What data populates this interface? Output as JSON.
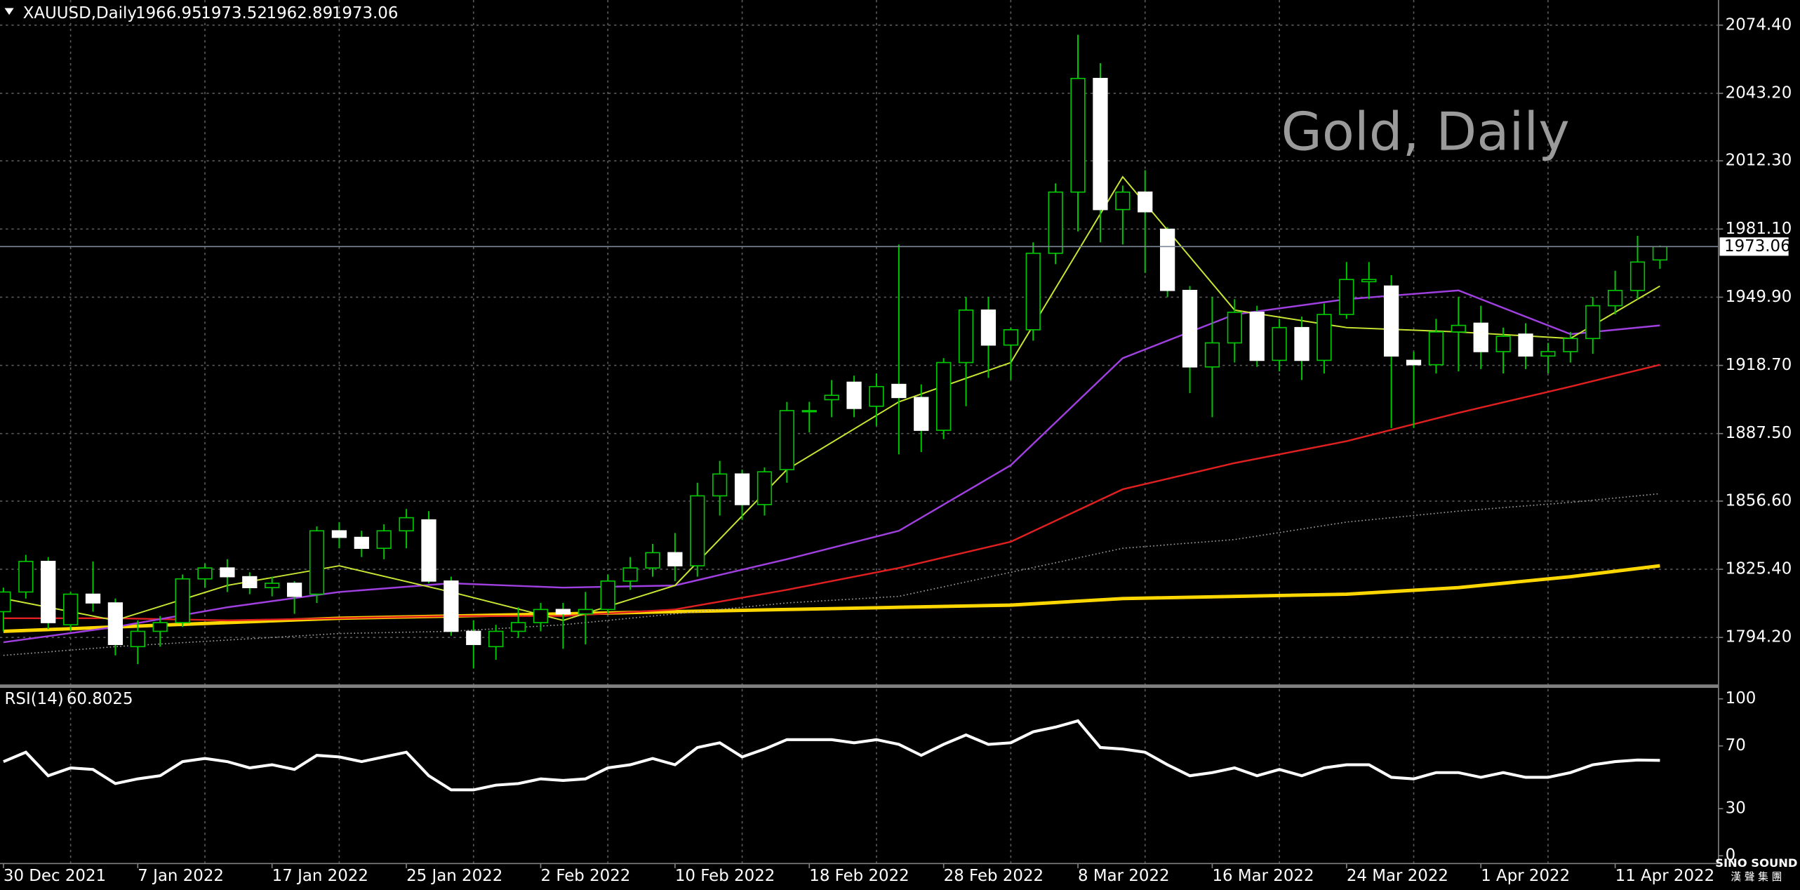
{
  "chart_data": [
    {
      "type": "candlestick",
      "title": "XAUUSD,Daily",
      "annotation": "Gold, Daily",
      "categories": [
        "30 Dec 2021",
        null,
        null,
        null,
        null,
        null,
        "7 Jan 2022",
        null,
        null,
        null,
        null,
        null,
        "17 Jan 2022",
        null,
        null,
        null,
        null,
        null,
        "25 Jan 2022",
        null,
        null,
        null,
        null,
        null,
        "2 Feb 2022",
        null,
        null,
        null,
        null,
        null,
        "10 Feb 2022",
        null,
        null,
        null,
        null,
        null,
        "18 Feb 2022",
        null,
        null,
        null,
        null,
        null,
        "28 Feb 2022",
        null,
        null,
        null,
        null,
        null,
        "8 Mar 2022",
        null,
        null,
        null,
        null,
        null,
        "16 Mar 2022",
        null,
        null,
        null,
        null,
        null,
        "24 Mar 2022",
        null,
        null,
        null,
        null,
        null,
        "1 Apr 2022",
        null,
        null,
        null,
        null,
        null,
        "11 Apr 2022",
        null,
        null
      ],
      "open": [
        1806,
        1815,
        1829,
        1800,
        1814,
        1810,
        1790,
        1797,
        1801,
        1821,
        1826,
        1822,
        1817,
        1819,
        1814,
        1843,
        1840,
        1835,
        1843,
        1848,
        1820,
        1797,
        1790,
        1797,
        1801,
        1807,
        1805,
        1807,
        1820,
        1826,
        1833,
        1827,
        1859,
        1869,
        1855,
        1871,
        1898,
        1903,
        1911,
        1900,
        1910,
        1904,
        1889,
        1920,
        1944,
        1928,
        1935,
        1970,
        1998,
        2050,
        1990,
        1998,
        1981,
        1953,
        1918,
        1929,
        1943,
        1921,
        1936,
        1921,
        1942,
        1957,
        1955,
        1921,
        1919,
        1934,
        1938,
        1925,
        1933,
        1923,
        1925,
        1931,
        1946,
        1953,
        1966.95
      ],
      "high": [
        1817,
        1832,
        1831,
        1815,
        1829,
        1812,
        1802,
        1804,
        1823,
        1828,
        1830,
        1824,
        1822,
        1820,
        1845,
        1847,
        1843,
        1846,
        1853,
        1852,
        1822,
        1802,
        1800,
        1808,
        1810,
        1810,
        1815,
        1823,
        1831,
        1837,
        1842,
        1865,
        1875,
        1871,
        1872,
        1902,
        1902,
        1912,
        1914,
        1915,
        1974,
        1910,
        1922,
        1950,
        1950,
        1936,
        1975,
        2002,
        2070,
        2057,
        2001,
        2008,
        1982,
        1955,
        1950,
        1949,
        1946,
        1940,
        1941,
        1947,
        1966,
        1966,
        1960,
        1925,
        1940,
        1950,
        1946,
        1936,
        1938,
        1929,
        1934,
        1950,
        1962,
        1978,
        1973.52
      ],
      "low": [
        1797,
        1812,
        1798,
        1797,
        1806,
        1786,
        1782,
        1790,
        1799,
        1817,
        1815,
        1814,
        1813,
        1805,
        1810,
        1835,
        1831,
        1830,
        1835,
        1819,
        1795,
        1780,
        1784,
        1794,
        1797,
        1789,
        1791,
        1805,
        1816,
        1822,
        1820,
        1822,
        1850,
        1848,
        1850,
        1865,
        1888,
        1895,
        1895,
        1891,
        1878,
        1879,
        1885,
        1900,
        1913,
        1912,
        1930,
        1965,
        1980,
        1975,
        1974,
        1961,
        1950,
        1906,
        1895,
        1920,
        1918,
        1916,
        1912,
        1915,
        1940,
        1949,
        1890,
        1890,
        1915,
        1916,
        1917,
        1915,
        1917,
        1915,
        1920,
        1924,
        1942,
        1949,
        1962.89
      ],
      "close": [
        1815,
        1829,
        1801,
        1814,
        1810,
        1791,
        1797,
        1801,
        1821,
        1826,
        1822,
        1817,
        1819,
        1813,
        1843,
        1840,
        1835,
        1843,
        1849,
        1820,
        1797,
        1791,
        1797,
        1801,
        1807,
        1805,
        1807,
        1820,
        1826,
        1833,
        1827,
        1859,
        1869,
        1855,
        1870,
        1898,
        1898,
        1905,
        1899,
        1909,
        1904,
        1889,
        1920,
        1944,
        1928,
        1935,
        1970,
        1998,
        2050,
        1990,
        1998,
        1989,
        1953,
        1918,
        1929,
        1943,
        1921,
        1936,
        1921,
        1942,
        1958,
        1958,
        1923,
        1919,
        1934,
        1937,
        1925,
        1932,
        1923,
        1925,
        1931,
        1946,
        1953,
        1966,
        1973.06
      ],
      "up_color": "#00c800",
      "down_fill": "#ffffff",
      "up_fill": "#000000",
      "lines": [
        {
          "color": "#ffd700",
          "width": 3,
          "x": [
            0,
            5,
            10,
            15,
            20,
            25,
            30,
            35,
            40,
            45,
            50,
            55,
            60,
            65,
            70,
            74
          ],
          "values": [
            1797,
            1799,
            1801,
            1803,
            1804,
            1805,
            1806,
            1807,
            1808,
            1809,
            1812,
            1813,
            1814,
            1817,
            1822,
            1827
          ]
        },
        {
          "color": "#a0a0a0",
          "width": 1,
          "dotted": true,
          "x": [
            0,
            5,
            10,
            15,
            20,
            25,
            30,
            35,
            40,
            45,
            50,
            55,
            60,
            65,
            70,
            74
          ],
          "values": [
            1786,
            1790,
            1793,
            1796,
            1797,
            1800,
            1805,
            1810,
            1813,
            1824,
            1835,
            1839,
            1847,
            1852,
            1856,
            1860
          ]
        },
        {
          "color": "#e02020",
          "width": 1.5,
          "x": [
            0,
            5,
            10,
            15,
            20,
            25,
            30,
            35,
            40,
            45,
            50,
            55,
            60,
            65,
            70,
            74
          ],
          "values": [
            1803,
            1803,
            1802,
            1803,
            1804,
            1804,
            1807,
            1816,
            1826,
            1838,
            1862,
            1874,
            1884,
            1897,
            1909,
            1919
          ]
        },
        {
          "color": "#a040e0",
          "width": 1.5,
          "x": [
            0,
            5,
            10,
            15,
            20,
            25,
            30,
            35,
            40,
            45,
            50,
            55,
            60,
            65,
            70,
            74
          ],
          "values": [
            1792,
            1799,
            1808,
            1815,
            1819,
            1817,
            1818,
            1830,
            1843,
            1873,
            1922,
            1942,
            1949,
            1953,
            1933,
            1937
          ]
        },
        {
          "color": "#c8e632",
          "width": 1.2,
          "x": [
            0,
            5,
            10,
            15,
            20,
            25,
            30,
            35,
            40,
            45,
            50,
            55,
            60,
            65,
            70,
            74
          ],
          "values": [
            1812,
            1802,
            1818,
            1827,
            1815,
            1802,
            1818,
            1871,
            1902,
            1920,
            2005,
            1944,
            1936,
            1934,
            1931,
            1955
          ]
        }
      ],
      "ylim": [
        1772.7,
        2085.9
      ],
      "yticks": [
        {
          "value": 1794.2,
          "label": "1794.20"
        },
        {
          "value": 1825.4,
          "label": "1825.40"
        },
        {
          "value": 1856.6,
          "label": "1856.60"
        },
        {
          "value": 1887.5,
          "label": "1887.50"
        },
        {
          "value": 1918.7,
          "label": "1918.70"
        },
        {
          "value": 1949.9,
          "label": "1949.90"
        },
        {
          "value": 1981.1,
          "label": "1981.10"
        },
        {
          "value": 2012.3,
          "label": "2012.30"
        },
        {
          "value": 2043.2,
          "label": "2043.20"
        },
        {
          "value": 2074.4,
          "label": "2074.40"
        }
      ],
      "grid": true
    },
    {
      "type": "line",
      "title": "RSI(14)",
      "color": "#ffffff",
      "values": [
        60,
        66,
        51,
        56,
        55,
        46,
        49,
        51,
        60,
        62,
        60,
        56,
        58,
        55,
        64,
        63,
        60,
        63,
        66,
        51,
        42,
        42,
        45,
        46,
        49,
        48,
        49,
        56,
        58,
        62,
        58,
        69,
        72,
        63,
        68,
        74,
        74,
        74,
        72,
        74,
        71,
        64,
        71,
        77,
        71,
        72,
        79,
        82,
        86,
        69,
        68,
        66,
        58,
        51,
        53,
        56,
        51,
        55,
        51,
        56,
        58,
        58,
        50,
        49,
        53,
        53,
        50,
        53,
        50,
        50,
        53,
        58,
        60,
        61,
        60.8025
      ],
      "ylim": [
        -5,
        107
      ],
      "yticks": [
        0,
        30,
        70,
        100
      ]
    }
  ],
  "logo": {
    "name": "SINO SOUND",
    "subtitle": "漢 聲 集 團"
  }
}
